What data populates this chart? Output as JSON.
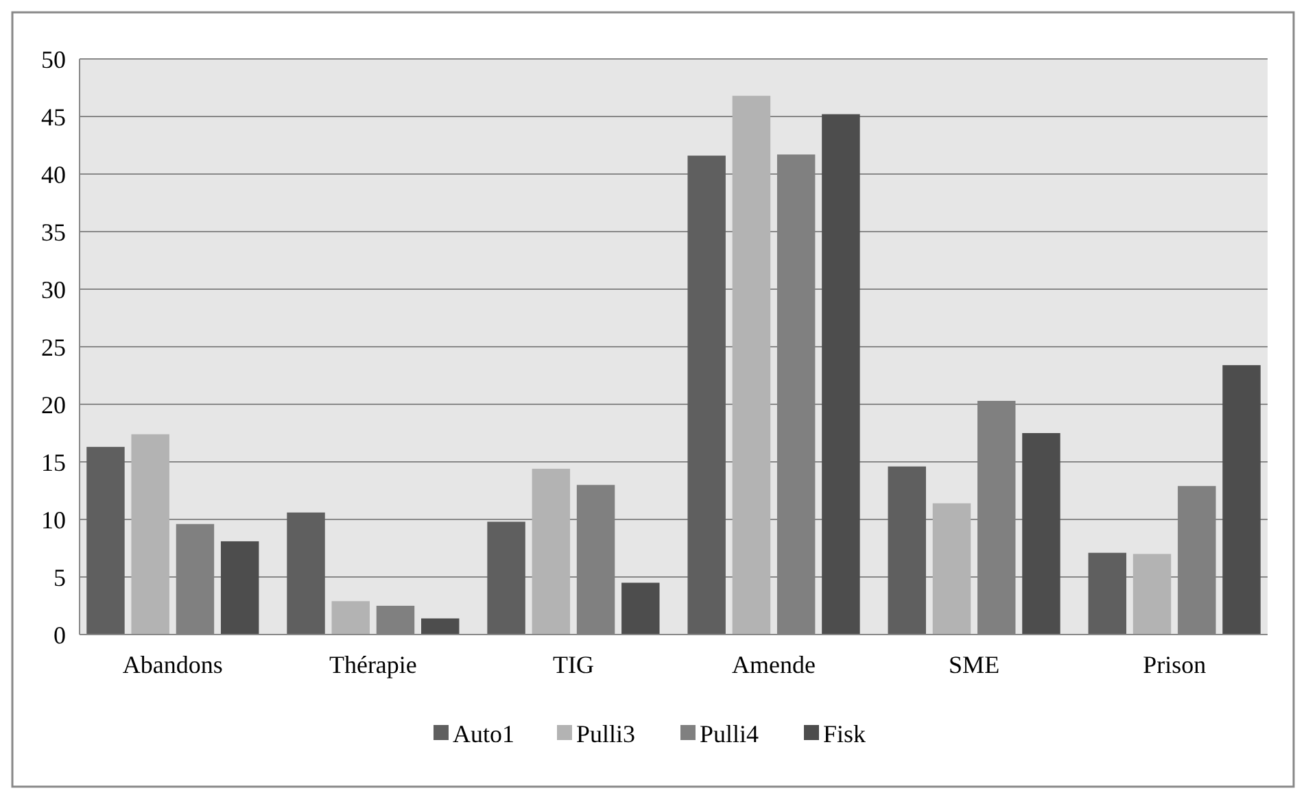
{
  "chart_data": {
    "type": "bar",
    "categories": [
      "Abandons",
      "Thérapie",
      "TIG",
      "Amende",
      "SME",
      "Prison"
    ],
    "series": [
      {
        "name": "Auto1",
        "color": "#5f5f5f",
        "values": [
          16.3,
          10.6,
          9.8,
          41.6,
          14.6,
          7.1
        ]
      },
      {
        "name": "Pulli3",
        "color": "#b3b3b3",
        "values": [
          17.4,
          2.9,
          14.4,
          46.8,
          11.4,
          7.0
        ]
      },
      {
        "name": "Pulli4",
        "color": "#808080",
        "values": [
          9.6,
          2.5,
          13.0,
          41.7,
          20.3,
          12.9
        ]
      },
      {
        "name": "Fisk",
        "color": "#4d4d4d",
        "values": [
          8.1,
          1.4,
          4.5,
          45.2,
          17.5,
          23.4
        ]
      }
    ],
    "ylim": [
      0,
      50
    ],
    "yticks": [
      0,
      5,
      10,
      15,
      20,
      25,
      30,
      35,
      40,
      45,
      50
    ],
    "grid": "y",
    "legend": "bottom"
  }
}
